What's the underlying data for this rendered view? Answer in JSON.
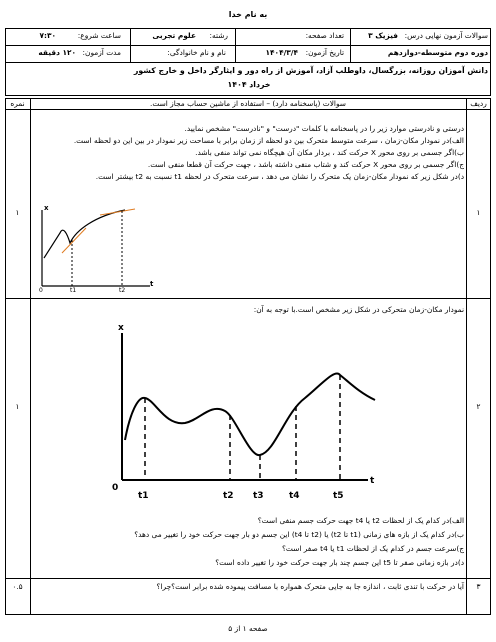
{
  "header": {
    "bismillah": "به نام خدا",
    "row1": {
      "course_label": "سوالات آزمون نهایی درس:",
      "course": "فیزیک ۳",
      "pages_label": "تعداد صفحه:",
      "field_label": "رشته:",
      "field": "علوم تجربی",
      "start_label": "ساعت شروع:",
      "start": "۷:۳۰"
    },
    "row2": {
      "grade": "دوره دوم متوسطه-دوازدهم",
      "date_label": "تاریخ آزمون:",
      "date": "۱۴۰۴/۳/۴",
      "name_label": "نام و نام خانوادگی:",
      "duration_label": "مدت آزمون:",
      "duration": "۱۲۰ دقیقه"
    },
    "row3": {
      "audience": "دانش آموزان روزانه، بزرگسال، داوطلب آزاد، آموزش از راه دور و ایثارگر داخل و خارج کشور",
      "session": "خرداد ۱۴۰۴"
    }
  },
  "table": {
    "columns": [
      "ردیف",
      "سوالات (پاسخنامه دارد) – استفاده از ماشین حساب مجاز است.",
      "نمره"
    ],
    "questions": [
      {
        "number": "۱",
        "score": "۱",
        "lines": [
          "درستی و نادرستی موارد زیر را در پاسخنامه با کلمات \"درست\" و \"نادرست\" مشخص نمایید.",
          "الف)در نمودار مکان-زمان ، سرعت متوسط متحرک بین دو لحظه از زمان برابر با مساحت زیر نمودار در بین این دو لحظه است.",
          "ب)اگر جسمی بر روی محور X حرکت کند ، بردار مکان آن هیچگاه نمی تواند منفی باشد.",
          "ج)اگر جسمی بر روی محور X حرکت کند و شتاب منفی داشته باشد ، جهت حرکت آن قطعا منفی است.",
          "د)در شکل زیر که نمودار مکان-زمان یک متحرک را نشان می دهد ، سرعت متحرک در لحظه t1 نسبت به t2 بیشتر است."
        ],
        "figure": {
          "y_label": "x",
          "origin": "0",
          "ticks": [
            "t1",
            "t2"
          ],
          "x_label": "t"
        }
      },
      {
        "number": "۲",
        "score": "۱",
        "lines": [
          "نمودار مکان-زمان متحرکی در شکل زیر مشخص است.با توجه به آن:",
          "الف)در کدام یک از لحظات t2 یا t4 جهت حرکت جسم منفی است؟",
          "ب)در کدام یک از بازه های زمانی (t1 تا t2) یا (t2 تا t4) این جسم دو بار جهت حرکت خود را تغییر می دهد؟",
          "ج)سرعت جسم در کدام یک از لحظات t1 یا t4 صفر است؟",
          "د)در بازه زمانی صفر تا t5 این جسم چند بار جهت حرکت خود را تغییر داده است؟"
        ],
        "figure": {
          "y_label": "x",
          "origin": "0",
          "ticks": [
            "t1",
            "t2",
            "t3",
            "t4",
            "t5"
          ],
          "x_label": "t"
        }
      },
      {
        "number": "۳",
        "score": "۰.۵",
        "lines": [
          "آیا در حرکت با تندی ثابت ، اندازه جا به جایی متحرک همواره با مسافت پیموده شده برابر است؟چرا؟"
        ]
      }
    ]
  },
  "footer": "صفحه ۱ از ۵"
}
